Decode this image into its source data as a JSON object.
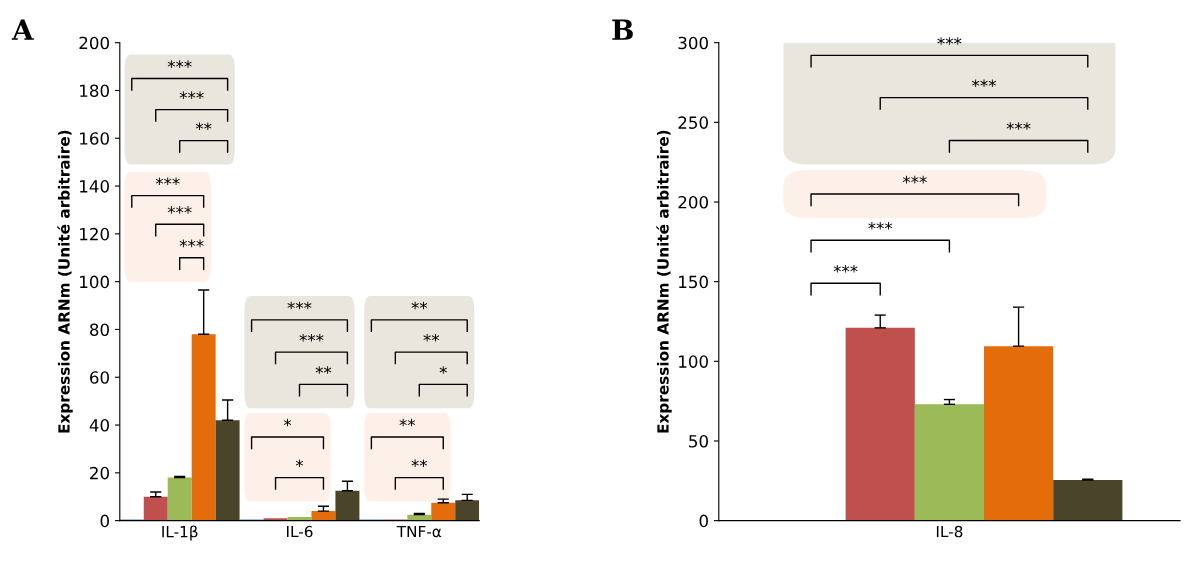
{
  "chart_data": [
    {
      "type": "bar",
      "title": "A",
      "categories": [
        "IL-1β",
        "IL-6",
        "TNF-α"
      ],
      "ylabel": "Expression ARNm (Unité arbitraire)",
      "ylim": [
        0,
        200
      ],
      "yticks": [
        0,
        20,
        40,
        60,
        80,
        100,
        120,
        140,
        160,
        180,
        200
      ],
      "grid": false,
      "series": [
        {
          "color": "#4f81bd",
          "values": [
            0.5,
            0.5,
            0.5
          ],
          "errors": [
            null,
            null,
            null
          ]
        },
        {
          "color": "#c0504d",
          "values": [
            10,
            1,
            0.5
          ],
          "errors": [
            [
              10,
              12
            ],
            null,
            null
          ]
        },
        {
          "color": "#9bbb59",
          "values": [
            18,
            1.5,
            2.5
          ],
          "errors": [
            [
              18,
              18.5
            ],
            null,
            [
              2.5,
              3
            ]
          ]
        },
        {
          "color": "#e46c0a",
          "values": [
            78,
            4,
            7.5
          ],
          "errors": [
            [
              78,
              96.5
            ],
            [
              4,
              6
            ],
            [
              7.5,
              9
            ]
          ]
        },
        {
          "color": "#4a452a",
          "values": [
            42,
            12.5,
            8.5
          ],
          "errors": [
            [
              42,
              50.5
            ],
            [
              12.5,
              16.5
            ],
            [
              8.5,
              11
            ]
          ]
        }
      ],
      "annotations": [
        "***",
        "***",
        "**",
        "***",
        "***",
        "***",
        "***",
        "***",
        "**",
        "*",
        "*",
        "**",
        "**",
        "*",
        "**",
        "**"
      ]
    },
    {
      "type": "bar",
      "title": "B",
      "categories": [
        "IL-8"
      ],
      "ylabel": "Expression ARNm (Unité arbitraire)",
      "ylim": [
        0,
        300
      ],
      "yticks": [
        0,
        50,
        100,
        150,
        200,
        250,
        300
      ],
      "grid": false,
      "series": [
        {
          "values": [
            null
          ],
          "errors": [
            null
          ]
        },
        {
          "color": "#c0504d",
          "values": [
            121
          ],
          "errors": [
            [
              121,
              129
            ]
          ]
        },
        {
          "color": "#9bbb59",
          "values": [
            73
          ],
          "errors": [
            [
              73,
              76
            ]
          ]
        },
        {
          "color": "#e46c0a",
          "values": [
            109.5
          ],
          "errors": [
            [
              109.5,
              134
            ]
          ]
        },
        {
          "color": "#4a452a",
          "values": [
            25.5
          ],
          "errors": [
            [
              25.5,
              26
            ]
          ]
        }
      ],
      "annotations": [
        "***",
        "***",
        "***",
        "***",
        "***",
        "***"
      ]
    }
  ]
}
